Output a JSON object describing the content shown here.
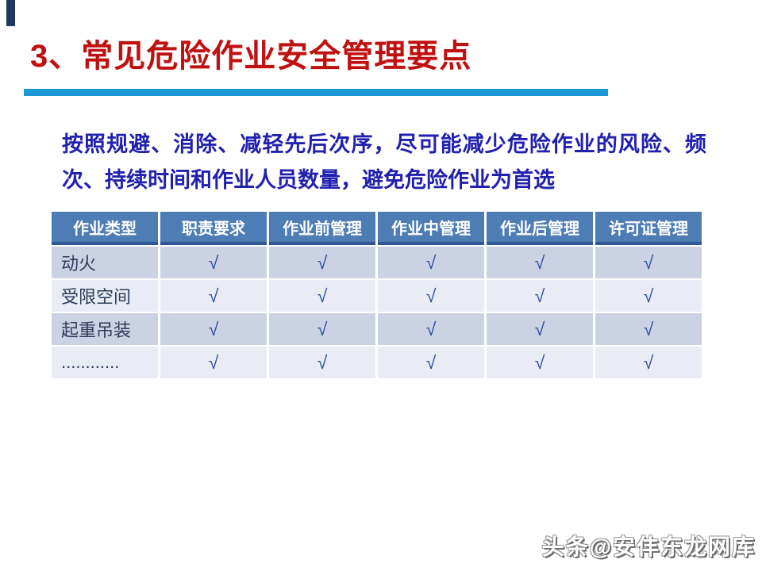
{
  "slide": {
    "title": "3、常见危险作业安全管理要点",
    "intro": "按照规避、消除、减轻先后次序，尽可能减少危险作业的风险、频次、持续时间和作业人员数量，避免危险作业为首选",
    "colors": {
      "title_red": "#C01111",
      "divider_blue": "#1C99D5",
      "intro_blue": "#2121B0",
      "corner_bar_navy": "#1F3864",
      "table_header_bg": "#4E7DB5",
      "table_header_border": "#2E5894",
      "table_row_dark": "#CBD2E3",
      "table_row_light": "#E9ECF4",
      "check_blue": "#2B4F9E"
    }
  },
  "table": {
    "headers": [
      "作业类型",
      "职责要求",
      "作业前管理",
      "作业中管理",
      "作业后管理",
      "许可证管理"
    ],
    "rows": [
      {
        "label": "动火",
        "checks": [
          "√",
          "√",
          "√",
          "√",
          "√"
        ]
      },
      {
        "label": "受限空间",
        "checks": [
          "√",
          "√",
          "√",
          "√",
          "√"
        ]
      },
      {
        "label": "起重吊装",
        "checks": [
          "√",
          "√",
          "√",
          "√",
          "√"
        ]
      },
      {
        "label": "............",
        "checks": [
          "√",
          "√",
          "√",
          "√",
          "√"
        ]
      }
    ]
  },
  "watermark": {
    "text": "头条@安仹东龙网库"
  }
}
